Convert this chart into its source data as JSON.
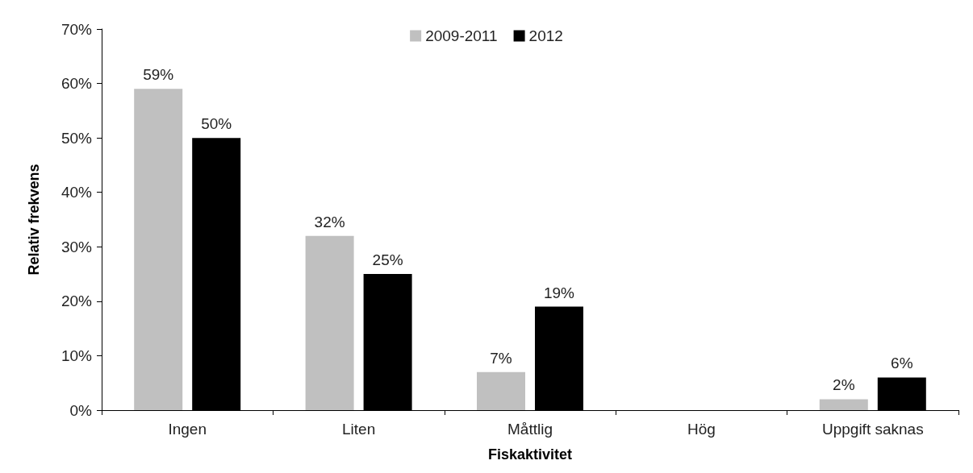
{
  "chart_data": {
    "type": "bar",
    "xlabel": "Fiskaktivitet",
    "ylabel": "Relativ frekvens",
    "categories": [
      "Ingen",
      "Liten",
      "Måttlig",
      "Hög",
      "Uppgift saknas"
    ],
    "series": [
      {
        "name": "2009-2011",
        "color": "#c0c0c0",
        "values": [
          59,
          32,
          7,
          null,
          2
        ],
        "value_labels": [
          "59%",
          "32%",
          "7%",
          null,
          "2%"
        ]
      },
      {
        "name": "2012",
        "color": "#000000",
        "values": [
          50,
          25,
          19,
          null,
          6
        ],
        "value_labels": [
          "50%",
          "25%",
          "19%",
          null,
          "6%"
        ]
      }
    ],
    "ylim": [
      0,
      70
    ],
    "yticks": [
      {
        "value": 0,
        "label": "0%"
      },
      {
        "value": 10,
        "label": "10%"
      },
      {
        "value": 20,
        "label": "20%"
      },
      {
        "value": 30,
        "label": "30%"
      },
      {
        "value": 40,
        "label": "40%"
      },
      {
        "value": 50,
        "label": "50%"
      },
      {
        "value": 60,
        "label": "60%"
      },
      {
        "value": 70,
        "label": "70%"
      }
    ],
    "grid": false,
    "legend": "top"
  }
}
